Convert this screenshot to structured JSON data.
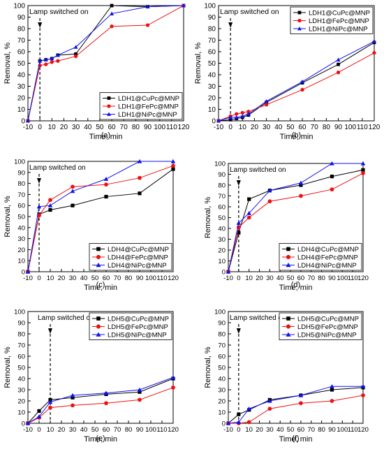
{
  "figure": {
    "panels": [
      {
        "label": "(a)",
        "legend_position": "bottom-right"
      },
      {
        "label": "(b)",
        "legend_position": "top-right"
      },
      {
        "label": "(c)",
        "legend_position": "bottom-right"
      },
      {
        "label": "(d)",
        "legend_position": "bottom-right"
      },
      {
        "label": "(e)",
        "legend_position": "top-right"
      },
      {
        "label": "(f)",
        "legend_position": "top-right"
      }
    ]
  },
  "colors": {
    "CuPc": "#000000",
    "FePc": "#ee1111",
    "NiPc": "#1111ee"
  },
  "chart_data": [
    {
      "type": "line",
      "panel": "(a)",
      "xlabel": "Time, min",
      "ylabel": "Removal, %",
      "xlim": [
        -10,
        120
      ],
      "ylim": [
        0,
        100
      ],
      "xticks": [
        -10,
        0,
        10,
        20,
        30,
        40,
        50,
        60,
        70,
        80,
        90,
        100,
        110,
        120
      ],
      "yticks": [
        0,
        10,
        20,
        30,
        40,
        50,
        60,
        70,
        80,
        90,
        100
      ],
      "annotation": "Lamp switched on",
      "lamp_x": 0,
      "series": [
        {
          "name": "LDH1@CuPc@MNP",
          "marker": "square",
          "x": [
            -10,
            0,
            5,
            10,
            15,
            30,
            60,
            90,
            120
          ],
          "y": [
            0,
            52,
            53,
            54,
            57,
            58,
            100,
            99,
            100
          ]
        },
        {
          "name": "LDH1@FePc@MNP",
          "marker": "circle",
          "x": [
            -10,
            0,
            5,
            10,
            15,
            30,
            60,
            90,
            120
          ],
          "y": [
            0,
            48,
            49,
            51,
            52,
            56,
            82,
            83,
            100
          ]
        },
        {
          "name": "LDH1@NiPc@MNP",
          "marker": "triangle",
          "x": [
            -10,
            0,
            5,
            10,
            15,
            30,
            60,
            90,
            120
          ],
          "y": [
            0,
            52,
            53,
            54,
            57,
            64,
            93,
            99,
            100
          ]
        }
      ]
    },
    {
      "type": "line",
      "panel": "(b)",
      "xlabel": "Time, min",
      "ylabel": "Removal, %",
      "xlim": [
        -10,
        120
      ],
      "ylim": [
        0,
        100
      ],
      "xticks": [
        -10,
        0,
        10,
        20,
        30,
        40,
        50,
        60,
        70,
        80,
        90,
        100,
        110,
        120
      ],
      "yticks": [
        0,
        10,
        20,
        30,
        40,
        50,
        60,
        70,
        80,
        90,
        100
      ],
      "annotation": "Lamp switched on",
      "lamp_x": 0,
      "series": [
        {
          "name": "LDH1@CuPc@MNP",
          "marker": "square",
          "x": [
            -10,
            0,
            5,
            10,
            15,
            30,
            60,
            90,
            120
          ],
          "y": [
            0,
            1,
            2,
            3,
            5,
            16,
            33,
            49,
            68
          ]
        },
        {
          "name": "LDH1@FePc@MNP",
          "marker": "circle",
          "x": [
            -10,
            0,
            5,
            10,
            15,
            30,
            60,
            90,
            120
          ],
          "y": [
            0,
            4,
            6,
            7,
            8,
            14,
            27,
            42,
            59
          ]
        },
        {
          "name": "LDH1@NiPc@MNP",
          "marker": "triangle",
          "x": [
            -10,
            0,
            5,
            10,
            15,
            30,
            60,
            90,
            120
          ],
          "y": [
            0,
            3,
            3,
            4,
            6,
            17,
            34,
            53,
            69
          ]
        }
      ]
    },
    {
      "type": "line",
      "panel": "(c)",
      "xlabel": "Time, min",
      "ylabel": "Removal, %",
      "xlim": [
        -10,
        120
      ],
      "ylim": [
        0,
        100
      ],
      "xticks": [
        -10,
        0,
        10,
        20,
        30,
        40,
        50,
        60,
        70,
        80,
        90,
        100,
        110,
        120
      ],
      "yticks": [
        0,
        10,
        20,
        30,
        40,
        50,
        60,
        70,
        80,
        90,
        100
      ],
      "annotation": "Lamp switched on",
      "lamp_x": 0,
      "series": [
        {
          "name": "LDH4@CuPc@MNP",
          "marker": "square",
          "x": [
            -10,
            0,
            10,
            30,
            60,
            90,
            120
          ],
          "y": [
            0,
            52,
            56,
            60,
            68,
            71,
            93
          ]
        },
        {
          "name": "LDH4@FePc@MNP",
          "marker": "circle",
          "x": [
            -10,
            0,
            10,
            30,
            60,
            90,
            120
          ],
          "y": [
            0,
            51,
            65,
            77,
            79,
            85,
            96
          ]
        },
        {
          "name": "LDH4@NiPc@MNP",
          "marker": "triangle",
          "x": [
            -10,
            0,
            10,
            30,
            60,
            90,
            120
          ],
          "y": [
            0,
            59,
            60,
            73,
            84,
            100,
            100
          ]
        }
      ]
    },
    {
      "type": "line",
      "panel": "(d)",
      "xlabel": "Time, min",
      "ylabel": "Removal, %",
      "xlim": [
        -10,
        120
      ],
      "ylim": [
        0,
        100
      ],
      "xticks": [
        -10,
        0,
        10,
        20,
        30,
        40,
        50,
        60,
        70,
        80,
        90,
        100,
        110,
        120
      ],
      "yticks": [
        0,
        10,
        20,
        30,
        40,
        50,
        60,
        70,
        80,
        90,
        100
      ],
      "annotation": "Lamp switched on",
      "lamp_x": 0,
      "series": [
        {
          "name": "LDH4@CuPc@MNP",
          "marker": "square",
          "x": [
            -10,
            0,
            10,
            30,
            60,
            90,
            120
          ],
          "y": [
            0,
            36,
            67,
            75,
            80,
            88,
            94
          ]
        },
        {
          "name": "LDH4@FePc@MNP",
          "marker": "circle",
          "x": [
            -10,
            0,
            10,
            30,
            60,
            90,
            120
          ],
          "y": [
            0,
            41,
            50,
            65,
            70,
            76,
            91
          ]
        },
        {
          "name": "LDH4@NiPc@MNP",
          "marker": "triangle",
          "x": [
            -10,
            0,
            10,
            30,
            60,
            90,
            120
          ],
          "y": [
            0,
            45,
            54,
            75,
            82,
            100,
            100
          ]
        }
      ]
    },
    {
      "type": "line",
      "panel": "(e)",
      "xlabel": "Time, min",
      "ylabel": "Removal, %",
      "xlim": [
        -10,
        120
      ],
      "ylim": [
        0,
        100
      ],
      "xticks": [
        -10,
        0,
        10,
        20,
        30,
        40,
        50,
        60,
        70,
        80,
        90,
        100,
        110,
        120
      ],
      "yticks": [
        0,
        10,
        20,
        30,
        40,
        50,
        60,
        70,
        80,
        90,
        100
      ],
      "annotation": "Lamp switched on",
      "lamp_x": 10,
      "series": [
        {
          "name": "LDH5@CuPc@MNP",
          "marker": "square",
          "x": [
            -10,
            0,
            10,
            30,
            60,
            90,
            120
          ],
          "y": [
            0,
            11,
            21,
            23,
            26,
            28,
            40
          ]
        },
        {
          "name": "LDH5@FePc@MNP",
          "marker": "circle",
          "x": [
            -10,
            0,
            10,
            30,
            60,
            90,
            120
          ],
          "y": [
            0,
            5,
            14,
            16,
            18,
            21,
            32
          ]
        },
        {
          "name": "LDH5@NiPc@MNP",
          "marker": "triangle",
          "x": [
            -10,
            0,
            10,
            30,
            60,
            90,
            120
          ],
          "y": [
            0,
            6,
            19,
            25,
            27,
            30,
            41
          ]
        }
      ]
    },
    {
      "type": "line",
      "panel": "(f)",
      "xlabel": "Time, min",
      "ylabel": "Removal, %",
      "xlim": [
        -10,
        120
      ],
      "ylim": [
        0,
        100
      ],
      "xticks": [
        -10,
        0,
        10,
        20,
        30,
        40,
        50,
        60,
        70,
        80,
        90,
        100,
        110,
        120
      ],
      "yticks": [
        0,
        10,
        20,
        30,
        40,
        50,
        60,
        70,
        80,
        90,
        100
      ],
      "annotation": "Lamp switched on",
      "lamp_x": 0,
      "series": [
        {
          "name": "LDH5@CuPc@MNP",
          "marker": "square",
          "x": [
            -10,
            0,
            10,
            30,
            60,
            90,
            120
          ],
          "y": [
            0,
            8,
            12,
            21,
            25,
            30,
            32
          ]
        },
        {
          "name": "LDH5@FePc@MNP",
          "marker": "circle",
          "x": [
            -10,
            0,
            10,
            30,
            60,
            90,
            120
          ],
          "y": [
            0,
            0,
            1,
            13,
            18,
            20,
            25
          ]
        },
        {
          "name": "LDH5@NiPc@MNP",
          "marker": "triangle",
          "x": [
            -10,
            0,
            10,
            30,
            60,
            90,
            120
          ],
          "y": [
            0,
            1,
            13,
            20,
            25,
            33,
            33
          ]
        }
      ]
    }
  ]
}
